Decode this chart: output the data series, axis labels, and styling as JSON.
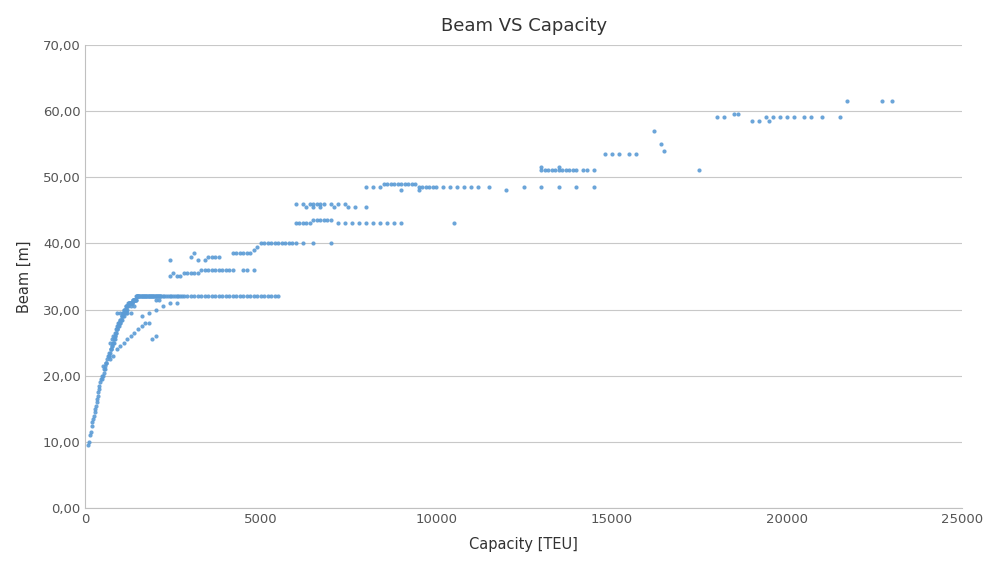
{
  "title": "Beam VS Capacity",
  "xlabel": "Capacity [TEU]",
  "ylabel": "Beam [m]",
  "dot_color": "#5B9BD5",
  "dot_size": 9,
  "xlim": [
    0,
    25000
  ],
  "ylim": [
    0,
    70
  ],
  "xticks": [
    0,
    5000,
    10000,
    15000,
    20000,
    25000
  ],
  "yticks": [
    0.0,
    10.0,
    20.0,
    30.0,
    40.0,
    50.0,
    60.0,
    70.0
  ],
  "background_color": "#FFFFFF",
  "fig_background": "#FFFFFF",
  "grid_color": "#C8C8C8",
  "points": [
    [
      66,
      9.5
    ],
    [
      100,
      10
    ],
    [
      130,
      11
    ],
    [
      150,
      11.5
    ],
    [
      180,
      12.5
    ],
    [
      200,
      13
    ],
    [
      220,
      13.5
    ],
    [
      240,
      14
    ],
    [
      260,
      14.5
    ],
    [
      280,
      15
    ],
    [
      300,
      15.5
    ],
    [
      320,
      16
    ],
    [
      340,
      16.5
    ],
    [
      360,
      17
    ],
    [
      370,
      17.5
    ],
    [
      390,
      18
    ],
    [
      400,
      18.5
    ],
    [
      420,
      19
    ],
    [
      440,
      19.5
    ],
    [
      460,
      19.5
    ],
    [
      480,
      20
    ],
    [
      500,
      20
    ],
    [
      520,
      20.5
    ],
    [
      540,
      21
    ],
    [
      550,
      21
    ],
    [
      560,
      21.5
    ],
    [
      580,
      22
    ],
    [
      600,
      22
    ],
    [
      620,
      22.5
    ],
    [
      640,
      23
    ],
    [
      660,
      23
    ],
    [
      670,
      23
    ],
    [
      680,
      23.5
    ],
    [
      700,
      23.5
    ],
    [
      720,
      24
    ],
    [
      730,
      24
    ],
    [
      740,
      24
    ],
    [
      760,
      24.5
    ],
    [
      770,
      24.5
    ],
    [
      780,
      25
    ],
    [
      800,
      25
    ],
    [
      810,
      25
    ],
    [
      820,
      25.5
    ],
    [
      830,
      25.5
    ],
    [
      840,
      26
    ],
    [
      850,
      26
    ],
    [
      860,
      26.5
    ],
    [
      870,
      26.5
    ],
    [
      880,
      27
    ],
    [
      890,
      27
    ],
    [
      900,
      27
    ],
    [
      910,
      27.5
    ],
    [
      920,
      27.5
    ],
    [
      930,
      27.5
    ],
    [
      940,
      28
    ],
    [
      950,
      28
    ],
    [
      960,
      28
    ],
    [
      970,
      28
    ],
    [
      980,
      28
    ],
    [
      990,
      28.5
    ],
    [
      1000,
      28.5
    ],
    [
      1010,
      28.5
    ],
    [
      1020,
      28.5
    ],
    [
      1030,
      29
    ],
    [
      1040,
      29
    ],
    [
      1050,
      29
    ],
    [
      1060,
      29
    ],
    [
      1070,
      29.5
    ],
    [
      1080,
      29.5
    ],
    [
      1090,
      29.5
    ],
    [
      1100,
      30
    ],
    [
      1110,
      30
    ],
    [
      1120,
      30
    ],
    [
      1130,
      30
    ],
    [
      1140,
      30
    ],
    [
      1150,
      30
    ],
    [
      1160,
      30.5
    ],
    [
      1170,
      30.5
    ],
    [
      1180,
      30.5
    ],
    [
      1190,
      30.5
    ],
    [
      1200,
      30.5
    ],
    [
      1210,
      30.5
    ],
    [
      1220,
      31
    ],
    [
      1230,
      31
    ],
    [
      1240,
      31
    ],
    [
      1250,
      31
    ],
    [
      1260,
      31
    ],
    [
      1270,
      31
    ],
    [
      1280,
      31
    ],
    [
      1290,
      31
    ],
    [
      1300,
      31
    ],
    [
      1310,
      31
    ],
    [
      1320,
      31
    ],
    [
      1330,
      31
    ],
    [
      1340,
      31
    ],
    [
      1350,
      31.5
    ],
    [
      1360,
      31.5
    ],
    [
      1370,
      31.5
    ],
    [
      1380,
      31.5
    ],
    [
      1390,
      31.5
    ],
    [
      1400,
      31.5
    ],
    [
      1410,
      31.5
    ],
    [
      1420,
      31.5
    ],
    [
      1430,
      31.5
    ],
    [
      1440,
      31.5
    ],
    [
      1450,
      32
    ],
    [
      1460,
      32
    ],
    [
      1470,
      32
    ],
    [
      1480,
      32
    ],
    [
      1490,
      32
    ],
    [
      1500,
      32
    ],
    [
      1520,
      32
    ],
    [
      1540,
      32
    ],
    [
      1560,
      32
    ],
    [
      1580,
      32
    ],
    [
      1600,
      32
    ],
    [
      1620,
      32
    ],
    [
      1640,
      32
    ],
    [
      1660,
      32
    ],
    [
      1680,
      32
    ],
    [
      1700,
      32
    ],
    [
      1720,
      32
    ],
    [
      1740,
      32
    ],
    [
      1760,
      32
    ],
    [
      1780,
      32
    ],
    [
      1800,
      32
    ],
    [
      1820,
      32
    ],
    [
      1840,
      32
    ],
    [
      1860,
      32
    ],
    [
      1880,
      32
    ],
    [
      1900,
      32
    ],
    [
      1920,
      32
    ],
    [
      1940,
      32
    ],
    [
      1960,
      32
    ],
    [
      1980,
      32
    ],
    [
      2000,
      32
    ],
    [
      2020,
      32
    ],
    [
      2040,
      32
    ],
    [
      2060,
      32
    ],
    [
      2080,
      32
    ],
    [
      2100,
      32
    ],
    [
      2120,
      32
    ],
    [
      2140,
      32
    ],
    [
      2160,
      32
    ],
    [
      2200,
      32
    ],
    [
      2250,
      32
    ],
    [
      2300,
      32
    ],
    [
      2350,
      32
    ],
    [
      2400,
      32
    ],
    [
      2450,
      32
    ],
    [
      2500,
      32
    ],
    [
      2550,
      32
    ],
    [
      2600,
      32
    ],
    [
      2650,
      32
    ],
    [
      2700,
      32
    ],
    [
      2750,
      32
    ],
    [
      2800,
      32
    ],
    [
      2900,
      32
    ],
    [
      3000,
      32
    ],
    [
      3100,
      32
    ],
    [
      3200,
      32
    ],
    [
      3300,
      32
    ],
    [
      3400,
      32
    ],
    [
      3500,
      32
    ],
    [
      3600,
      32
    ],
    [
      3700,
      32
    ],
    [
      3800,
      32
    ],
    [
      3900,
      32
    ],
    [
      4000,
      32
    ],
    [
      4100,
      32
    ],
    [
      4200,
      32
    ],
    [
      4300,
      32
    ],
    [
      4400,
      32
    ],
    [
      4500,
      32
    ],
    [
      4600,
      32
    ],
    [
      4700,
      32
    ],
    [
      4800,
      32
    ],
    [
      4900,
      32
    ],
    [
      5000,
      32
    ],
    [
      5100,
      32
    ],
    [
      5200,
      32
    ],
    [
      5300,
      32
    ],
    [
      5400,
      32
    ],
    [
      5500,
      32
    ],
    [
      700,
      25
    ],
    [
      750,
      25.5
    ],
    [
      800,
      26
    ],
    [
      850,
      26.5
    ],
    [
      900,
      27
    ],
    [
      950,
      27.5
    ],
    [
      1000,
      28
    ],
    [
      1050,
      28.5
    ],
    [
      1100,
      29
    ],
    [
      1150,
      29.5
    ],
    [
      1200,
      30
    ],
    [
      1300,
      30.5
    ],
    [
      1400,
      30.5
    ],
    [
      1600,
      29
    ],
    [
      1800,
      29.5
    ],
    [
      2000,
      30
    ],
    [
      2200,
      30.5
    ],
    [
      2400,
      31
    ],
    [
      2600,
      31
    ],
    [
      900,
      29.5
    ],
    [
      1000,
      29.5
    ],
    [
      1200,
      29.5
    ],
    [
      1300,
      29.5
    ],
    [
      500,
      21.5
    ],
    [
      600,
      22
    ],
    [
      700,
      22.5
    ],
    [
      800,
      23
    ],
    [
      900,
      24
    ],
    [
      1000,
      24.5
    ],
    [
      1100,
      25
    ],
    [
      1200,
      25.5
    ],
    [
      1300,
      26
    ],
    [
      1400,
      26.5
    ],
    [
      1500,
      27
    ],
    [
      1600,
      27.5
    ],
    [
      1700,
      28
    ],
    [
      1800,
      28
    ],
    [
      1900,
      25.5
    ],
    [
      2000,
      26
    ],
    [
      2000,
      31.5
    ],
    [
      2100,
      31.5
    ],
    [
      2600,
      35
    ],
    [
      2700,
      35
    ],
    [
      2800,
      35.5
    ],
    [
      2900,
      35.5
    ],
    [
      3000,
      35.5
    ],
    [
      3100,
      35.5
    ],
    [
      3200,
      35.5
    ],
    [
      3300,
      36
    ],
    [
      3400,
      36
    ],
    [
      3500,
      36
    ],
    [
      3600,
      36
    ],
    [
      3700,
      36
    ],
    [
      3800,
      36
    ],
    [
      3900,
      36
    ],
    [
      4000,
      36
    ],
    [
      4100,
      36
    ],
    [
      4200,
      36
    ],
    [
      4500,
      36
    ],
    [
      4600,
      36
    ],
    [
      4800,
      36
    ],
    [
      2400,
      35
    ],
    [
      2500,
      35.5
    ],
    [
      3200,
      37.5
    ],
    [
      3400,
      37.5
    ],
    [
      3500,
      38
    ],
    [
      3600,
      38
    ],
    [
      3700,
      38
    ],
    [
      3800,
      38
    ],
    [
      4200,
      38.5
    ],
    [
      4300,
      38.5
    ],
    [
      4400,
      38.5
    ],
    [
      4500,
      38.5
    ],
    [
      4600,
      38.5
    ],
    [
      4700,
      38.5
    ],
    [
      4800,
      39
    ],
    [
      4900,
      39.5
    ],
    [
      5000,
      40
    ],
    [
      5100,
      40
    ],
    [
      5200,
      40
    ],
    [
      5300,
      40
    ],
    [
      5400,
      40
    ],
    [
      5500,
      40
    ],
    [
      5600,
      40
    ],
    [
      5700,
      40
    ],
    [
      5800,
      40
    ],
    [
      5900,
      40
    ],
    [
      6000,
      40
    ],
    [
      6200,
      40
    ],
    [
      6500,
      40
    ],
    [
      7000,
      40
    ],
    [
      3000,
      38
    ],
    [
      3100,
      38.5
    ],
    [
      2400,
      37.5
    ],
    [
      6000,
      43
    ],
    [
      6100,
      43
    ],
    [
      6200,
      43
    ],
    [
      6300,
      43
    ],
    [
      6400,
      43
    ],
    [
      6500,
      43.5
    ],
    [
      6600,
      43.5
    ],
    [
      6700,
      43.5
    ],
    [
      6800,
      43.5
    ],
    [
      6900,
      43.5
    ],
    [
      7000,
      43.5
    ],
    [
      7200,
      43
    ],
    [
      7400,
      43
    ],
    [
      7600,
      43
    ],
    [
      7800,
      43
    ],
    [
      8000,
      43
    ],
    [
      8200,
      43
    ],
    [
      8400,
      43
    ],
    [
      8600,
      43
    ],
    [
      8800,
      43
    ],
    [
      9000,
      43
    ],
    [
      6000,
      46
    ],
    [
      6200,
      46
    ],
    [
      6400,
      46
    ],
    [
      6500,
      46
    ],
    [
      6600,
      46
    ],
    [
      6700,
      46
    ],
    [
      6800,
      46
    ],
    [
      7000,
      46
    ],
    [
      7200,
      46
    ],
    [
      7400,
      46
    ],
    [
      6300,
      45.5
    ],
    [
      6500,
      45.5
    ],
    [
      6700,
      45.5
    ],
    [
      7100,
      45.5
    ],
    [
      7500,
      45.5
    ],
    [
      7700,
      45.5
    ],
    [
      8000,
      45.5
    ],
    [
      8000,
      48.5
    ],
    [
      8200,
      48.5
    ],
    [
      8400,
      48.5
    ],
    [
      8500,
      49
    ],
    [
      8600,
      49
    ],
    [
      8700,
      49
    ],
    [
      8800,
      49
    ],
    [
      8900,
      49
    ],
    [
      9000,
      49
    ],
    [
      9100,
      49
    ],
    [
      9200,
      49
    ],
    [
      9300,
      49
    ],
    [
      9400,
      49
    ],
    [
      9500,
      48.5
    ],
    [
      9600,
      48.5
    ],
    [
      9700,
      48.5
    ],
    [
      9800,
      48.5
    ],
    [
      9900,
      48.5
    ],
    [
      10000,
      48.5
    ],
    [
      10200,
      48.5
    ],
    [
      10400,
      48.5
    ],
    [
      10600,
      48.5
    ],
    [
      10800,
      48.5
    ],
    [
      11000,
      48.5
    ],
    [
      11200,
      48.5
    ],
    [
      11500,
      48.5
    ],
    [
      9000,
      48
    ],
    [
      9500,
      48
    ],
    [
      10500,
      43
    ],
    [
      12500,
      48.5
    ],
    [
      13000,
      48.5
    ],
    [
      13500,
      48.5
    ],
    [
      14000,
      48.5
    ],
    [
      14500,
      48.5
    ],
    [
      12000,
      48
    ],
    [
      13000,
      51
    ],
    [
      13100,
      51
    ],
    [
      13200,
      51
    ],
    [
      13300,
      51
    ],
    [
      13400,
      51
    ],
    [
      13500,
      51
    ],
    [
      13600,
      51
    ],
    [
      13700,
      51
    ],
    [
      13800,
      51
    ],
    [
      13900,
      51
    ],
    [
      14000,
      51
    ],
    [
      14200,
      51
    ],
    [
      14300,
      51
    ],
    [
      14500,
      51
    ],
    [
      13000,
      51.5
    ],
    [
      13500,
      51.5
    ],
    [
      14800,
      53.5
    ],
    [
      15000,
      53.5
    ],
    [
      15200,
      53.5
    ],
    [
      15500,
      53.5
    ],
    [
      15700,
      53.5
    ],
    [
      16200,
      57
    ],
    [
      16400,
      55
    ],
    [
      16500,
      54
    ],
    [
      17500,
      51
    ],
    [
      18000,
      59
    ],
    [
      18200,
      59
    ],
    [
      18500,
      59.5
    ],
    [
      18600,
      59.5
    ],
    [
      19000,
      58.5
    ],
    [
      19200,
      58.5
    ],
    [
      19400,
      59
    ],
    [
      19500,
      58.5
    ],
    [
      19600,
      59
    ],
    [
      19800,
      59
    ],
    [
      20000,
      59
    ],
    [
      20200,
      59
    ],
    [
      20500,
      59
    ],
    [
      20700,
      59
    ],
    [
      21000,
      59
    ],
    [
      21500,
      59
    ],
    [
      21700,
      61.5
    ],
    [
      22700,
      61.5
    ],
    [
      23000,
      61.5
    ]
  ]
}
